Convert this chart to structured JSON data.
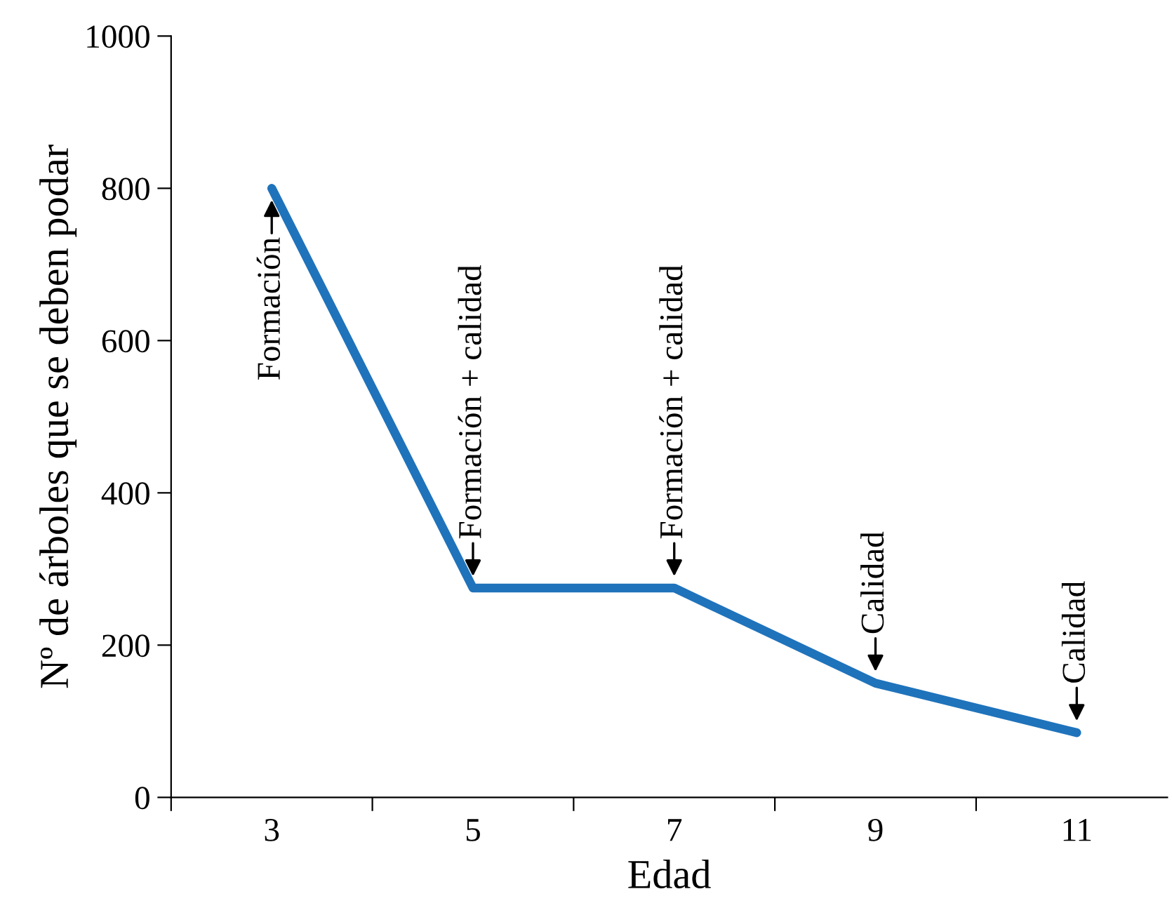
{
  "chart_data": {
    "type": "line",
    "xlabel": "Edad",
    "ylabel": "Nº de árboles que se deben podar",
    "x": [
      3,
      5,
      7,
      9,
      11
    ],
    "series": [
      {
        "color": "#1f73bb",
        "values": [
          800,
          275,
          275,
          150,
          85
        ]
      }
    ],
    "xlim": [
      2,
      11.9
    ],
    "xticks": [
      {
        "value": 2,
        "label": null
      },
      3,
      {
        "value": 4,
        "label": null
      },
      5,
      {
        "value": 6,
        "label": null
      },
      7,
      {
        "value": 8,
        "label": null
      },
      9,
      {
        "value": 10,
        "label": null
      },
      11
    ],
    "ylim": [
      0,
      1000
    ],
    "yticks": [
      0,
      200,
      400,
      600,
      800,
      1000
    ],
    "grid": false,
    "legend": false,
    "marker": "none",
    "line_style": "solid",
    "annotations": [
      {
        "text": "Formación",
        "x": 3,
        "y": 800
      },
      {
        "text": "Formación + calidad",
        "x": 5,
        "y": 275
      },
      {
        "text": "Formación + calidad",
        "x": 7,
        "y": 275
      },
      {
        "text": "Calidad",
        "x": 9,
        "y": 150
      },
      {
        "text": "Calidad",
        "x": 11,
        "y": 85
      }
    ]
  }
}
